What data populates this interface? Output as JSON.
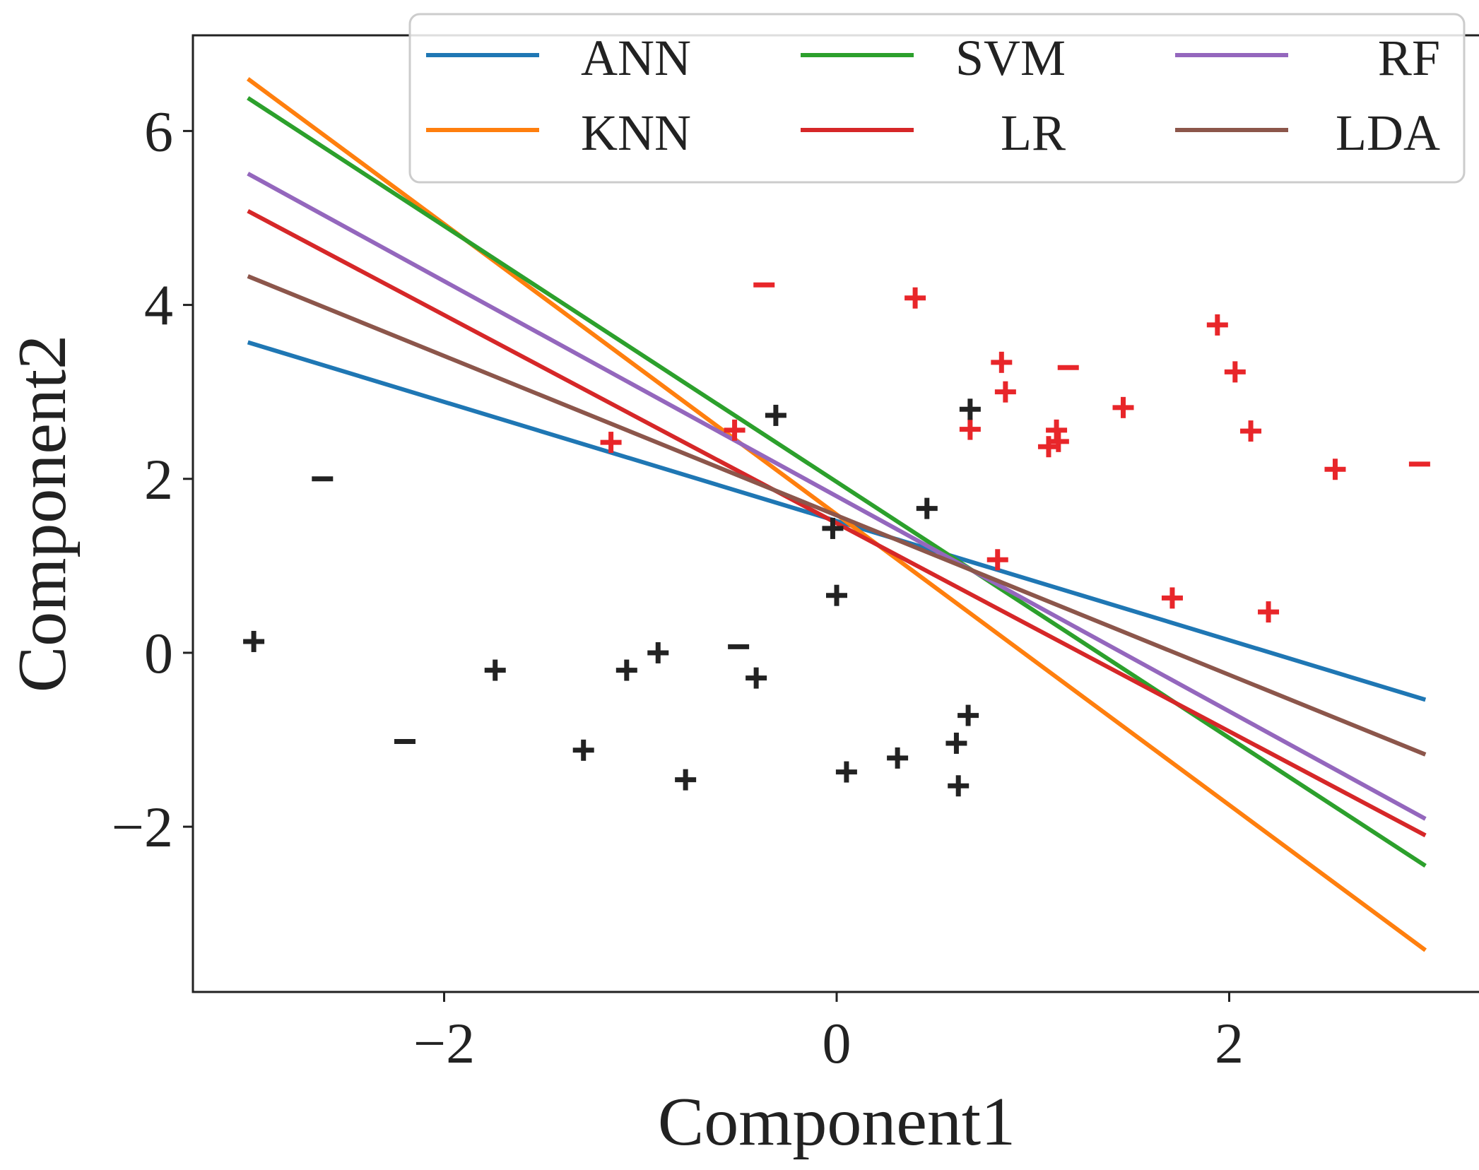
{
  "chart_data": {
    "type": "line",
    "title": "",
    "xlabel": "Component1",
    "ylabel": "Component2",
    "xlim": [
      -3.28,
      3.28
    ],
    "ylim": [
      -3.9,
      7.1
    ],
    "xticks": [
      {
        "value": -2,
        "label": "−2"
      },
      {
        "value": 0,
        "label": "0"
      },
      {
        "value": 2,
        "label": "2"
      }
    ],
    "yticks": [
      {
        "value": -2,
        "label": "−2"
      },
      {
        "value": 0,
        "label": "0"
      },
      {
        "value": 2,
        "label": "2"
      },
      {
        "value": 4,
        "label": "4"
      },
      {
        "value": 6,
        "label": "6"
      }
    ],
    "grid": false,
    "legend": {
      "position": "top-right",
      "columns": 3
    },
    "series": [
      {
        "name": "ANN",
        "color": "#1f77b4",
        "x": [
          -3.0,
          3.0
        ],
        "y": [
          3.57,
          -0.54
        ]
      },
      {
        "name": "KNN",
        "color": "#ff7f0e",
        "x": [
          -3.0,
          3.0
        ],
        "y": [
          6.6,
          -3.42
        ]
      },
      {
        "name": "SVM",
        "color": "#2ca02c",
        "x": [
          -3.0,
          3.0
        ],
        "y": [
          6.38,
          -2.45
        ]
      },
      {
        "name": "LR",
        "color": "#d62728",
        "x": [
          -3.0,
          3.0
        ],
        "y": [
          5.08,
          -2.1
        ]
      },
      {
        "name": "RF",
        "color": "#9467bd",
        "x": [
          -3.0,
          3.0
        ],
        "y": [
          5.51,
          -1.91
        ]
      },
      {
        "name": "LDA",
        "color": "#8c564b",
        "x": [
          -3.0,
          3.0
        ],
        "y": [
          4.33,
          -1.17
        ]
      }
    ],
    "scatter": {
      "classes": [
        {
          "color": "#e8262a"
        },
        {
          "color": "#222222"
        }
      ],
      "points": [
        {
          "x": -0.37,
          "y": 4.23,
          "m": "−",
          "c": 0
        },
        {
          "x": 0.4,
          "y": 4.08,
          "m": "+",
          "c": 0
        },
        {
          "x": 0.84,
          "y": 3.34,
          "m": "+",
          "c": 0
        },
        {
          "x": 0.86,
          "y": 3.0,
          "m": "+",
          "c": 0
        },
        {
          "x": 1.18,
          "y": 3.28,
          "m": "−",
          "c": 0
        },
        {
          "x": 1.94,
          "y": 3.77,
          "m": "+",
          "c": 0
        },
        {
          "x": 2.03,
          "y": 3.23,
          "m": "+",
          "c": 0
        },
        {
          "x": 1.46,
          "y": 2.82,
          "m": "+",
          "c": 0
        },
        {
          "x": 2.11,
          "y": 2.55,
          "m": "+",
          "c": 0
        },
        {
          "x": 1.12,
          "y": 2.56,
          "m": "+",
          "c": 0
        },
        {
          "x": 1.13,
          "y": 2.43,
          "m": "+",
          "c": 0
        },
        {
          "x": 1.08,
          "y": 2.37,
          "m": "+",
          "c": 0
        },
        {
          "x": 0.68,
          "y": 2.57,
          "m": "+",
          "c": 0
        },
        {
          "x": -0.52,
          "y": 2.56,
          "m": "+",
          "c": 0
        },
        {
          "x": -1.15,
          "y": 2.42,
          "m": "+",
          "c": 0
        },
        {
          "x": 2.54,
          "y": 2.11,
          "m": "+",
          "c": 0
        },
        {
          "x": 2.97,
          "y": 2.17,
          "m": "−",
          "c": 0
        },
        {
          "x": 0.82,
          "y": 1.07,
          "m": "+",
          "c": 0
        },
        {
          "x": 1.71,
          "y": 0.63,
          "m": "+",
          "c": 0
        },
        {
          "x": 2.2,
          "y": 0.47,
          "m": "+",
          "c": 0
        },
        {
          "x": -0.31,
          "y": 2.73,
          "m": "+",
          "c": 1
        },
        {
          "x": 0.68,
          "y": 2.8,
          "m": "+",
          "c": 1
        },
        {
          "x": -2.62,
          "y": 2.0,
          "m": "−",
          "c": 1
        },
        {
          "x": 0.46,
          "y": 1.66,
          "m": "+",
          "c": 1
        },
        {
          "x": -0.02,
          "y": 1.43,
          "m": "+",
          "c": 1
        },
        {
          "x": 0.0,
          "y": 0.66,
          "m": "+",
          "c": 1
        },
        {
          "x": -2.97,
          "y": 0.13,
          "m": "+",
          "c": 1
        },
        {
          "x": -1.74,
          "y": -0.2,
          "m": "+",
          "c": 1
        },
        {
          "x": -1.07,
          "y": -0.2,
          "m": "+",
          "c": 1
        },
        {
          "x": -0.91,
          "y": 0.0,
          "m": "+",
          "c": 1
        },
        {
          "x": -0.5,
          "y": 0.07,
          "m": "−",
          "c": 1
        },
        {
          "x": -0.41,
          "y": -0.29,
          "m": "+",
          "c": 1
        },
        {
          "x": -2.2,
          "y": -1.02,
          "m": "−",
          "c": 1
        },
        {
          "x": -1.29,
          "y": -1.12,
          "m": "+",
          "c": 1
        },
        {
          "x": -0.77,
          "y": -1.46,
          "m": "+",
          "c": 1
        },
        {
          "x": 0.05,
          "y": -1.37,
          "m": "+",
          "c": 1
        },
        {
          "x": 0.31,
          "y": -1.21,
          "m": "+",
          "c": 1
        },
        {
          "x": 0.61,
          "y": -1.04,
          "m": "+",
          "c": 1
        },
        {
          "x": 0.67,
          "y": -0.72,
          "m": "+",
          "c": 1
        },
        {
          "x": 0.62,
          "y": -1.53,
          "m": "+",
          "c": 1
        }
      ]
    }
  }
}
